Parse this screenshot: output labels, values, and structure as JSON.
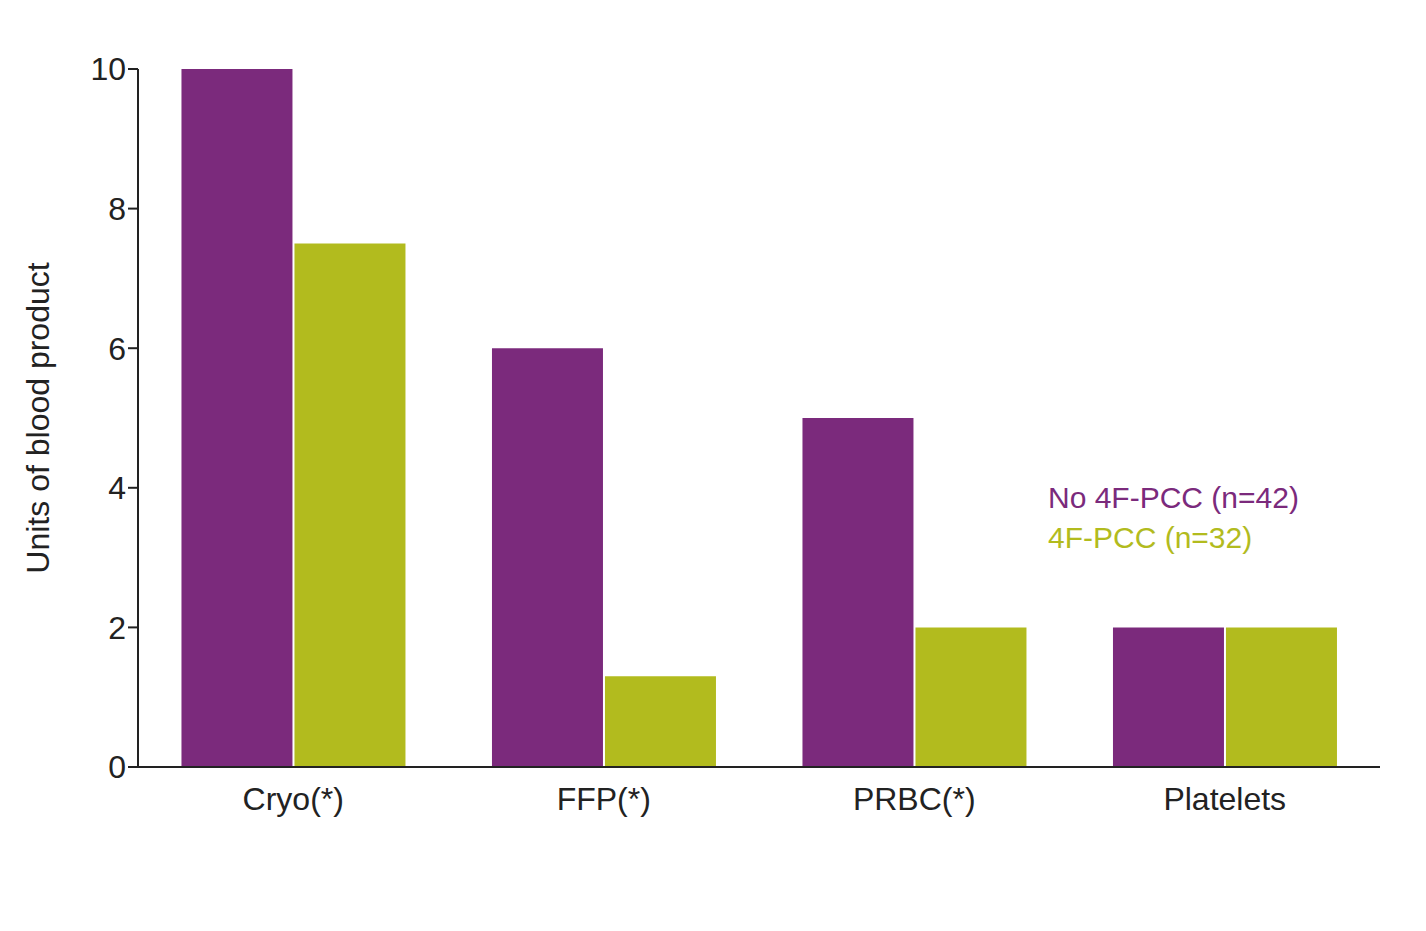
{
  "chart_data": {
    "type": "bar",
    "categories": [
      "Cryo(*)",
      "FFP(*)",
      "PRBC(*)",
      "Platelets"
    ],
    "series": [
      {
        "name": "No 4F-PCC (n=42)",
        "color": "#7b2a7c",
        "values": [
          10,
          6,
          5,
          2
        ]
      },
      {
        "name": "4F-PCC (n=32)",
        "color": "#b2bb1e",
        "values": [
          7.5,
          1.3,
          2,
          2
        ]
      }
    ],
    "y_label": "Units of blood product",
    "ylim": [
      0,
      10
    ],
    "yticks": [
      0,
      2,
      4,
      6,
      8,
      10
    ],
    "grid": false,
    "legend": "right"
  }
}
